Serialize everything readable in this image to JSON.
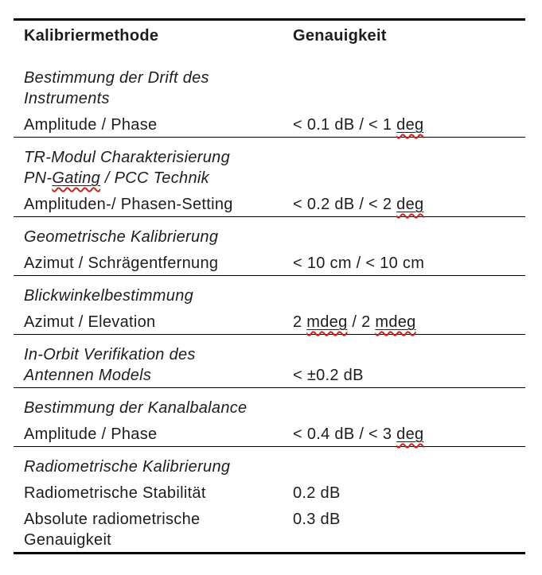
{
  "page": {
    "background": "#ffffff",
    "text_color": "#1d1d1d",
    "rule_color": "#000000",
    "spellcheck_squiggle_color": "#c9251d"
  },
  "table": {
    "header": {
      "method_col": "Kalibriermethode",
      "accuracy_col": "Genauigkeit"
    },
    "sections": [
      {
        "rows": [
          {
            "italic": true,
            "method": [
              {
                "text": "Bestimmung der Drift des"
              }
            ]
          },
          {
            "italic": true,
            "method": [
              {
                "text": "Instruments"
              }
            ]
          },
          {
            "new_item": true,
            "method": [
              {
                "text": "Amplitude / Phase"
              }
            ],
            "accuracy": [
              {
                "text": "< 0.1 dB / < 1 "
              },
              {
                "text": "deg",
                "spellcheck": true
              }
            ]
          }
        ]
      },
      {
        "rows": [
          {
            "italic": true,
            "method": [
              {
                "text": "TR-Modul Charakterisierung"
              }
            ]
          },
          {
            "italic": true,
            "method": [
              {
                "text": "PN-"
              },
              {
                "text": "Gating",
                "spellcheck": true
              },
              {
                "text": " / PCC Technik"
              }
            ]
          },
          {
            "new_item": true,
            "method": [
              {
                "text": "Amplituden-/ Phasen-Setting"
              }
            ],
            "accuracy": [
              {
                "text": "< 0.2 dB / < 2 "
              },
              {
                "text": "deg",
                "spellcheck": true
              }
            ]
          }
        ]
      },
      {
        "rows": [
          {
            "italic": true,
            "method": [
              {
                "text": "Geometrische Kalibrierung"
              }
            ]
          },
          {
            "new_item": true,
            "method": [
              {
                "text": "Azimut / Schrägentfernung"
              }
            ],
            "accuracy": [
              {
                "text": "< 10 cm / < 10 cm"
              }
            ]
          }
        ]
      },
      {
        "rows": [
          {
            "italic": true,
            "method": [
              {
                "text": "Blickwinkelbestimmung"
              }
            ]
          },
          {
            "new_item": true,
            "method": [
              {
                "text": "Azimut / Elevation"
              }
            ],
            "accuracy": [
              {
                "text": "2 "
              },
              {
                "text": "mdeg",
                "spellcheck": true
              },
              {
                "text": " / 2 "
              },
              {
                "text": "mdeg",
                "spellcheck": true
              }
            ]
          }
        ]
      },
      {
        "rows": [
          {
            "italic": true,
            "method": [
              {
                "text": "In-Orbit Verifikation des"
              }
            ]
          },
          {
            "italic": true,
            "method": [
              {
                "text": "Antennen Models"
              }
            ],
            "accuracy": [
              {
                "text": "< ±0.2 dB"
              }
            ]
          }
        ]
      },
      {
        "rows": [
          {
            "italic": true,
            "method": [
              {
                "text": "Bestimmung der Kanalbalance"
              }
            ]
          },
          {
            "new_item": true,
            "method": [
              {
                "text": "Amplitude / Phase"
              }
            ],
            "accuracy": [
              {
                "text": "< 0.4 dB / < 3 "
              },
              {
                "text": "deg",
                "spellcheck": true
              }
            ]
          }
        ]
      },
      {
        "rows": [
          {
            "italic": true,
            "method": [
              {
                "text": "Radiometrische Kalibrierung"
              }
            ]
          },
          {
            "new_item": true,
            "method": [
              {
                "text": "Radiometrische Stabilität"
              }
            ],
            "accuracy": [
              {
                "text": "0.2 dB"
              }
            ]
          },
          {
            "new_item": true,
            "method": [
              {
                "text": "Absolute radiometrische"
              }
            ],
            "accuracy": [
              {
                "text": "0.3 dB"
              }
            ]
          },
          {
            "method": [
              {
                "text": "Genauigkeit"
              }
            ]
          }
        ]
      }
    ]
  }
}
